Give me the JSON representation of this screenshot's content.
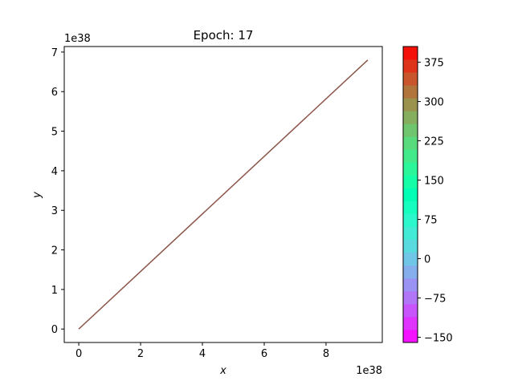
{
  "chart_data": {
    "type": "line",
    "title": "Epoch: 17",
    "xlabel": "x",
    "ylabel": "y",
    "x_offset_text": "1e38",
    "y_offset_text": "1e38",
    "xlim": [
      -0.47,
      9.82
    ],
    "ylim": [
      -0.34,
      7.14
    ],
    "x_ticks": [
      0,
      2,
      4,
      6,
      8
    ],
    "y_ticks": [
      0,
      1,
      2,
      3,
      4,
      5,
      6,
      7
    ],
    "x_tick_labels": [
      "0",
      "2",
      "4",
      "6",
      "8"
    ],
    "y_tick_labels": [
      "0",
      "1",
      "2",
      "3",
      "4",
      "5",
      "6",
      "7"
    ],
    "grid": false,
    "series": [
      {
        "color": "#8c564b",
        "points": [
          [
            0,
            0
          ],
          [
            9.35,
            6.8
          ]
        ]
      }
    ],
    "colorbar": {
      "colormap": "rainbow",
      "range": [
        -160,
        405
      ],
      "levels": 23,
      "ticks": [
        -150,
        -75,
        0,
        75,
        150,
        225,
        300,
        375
      ],
      "tick_labels": [
        "−150",
        "−75",
        "0",
        "75",
        "150",
        "225",
        "300",
        "375"
      ]
    }
  }
}
